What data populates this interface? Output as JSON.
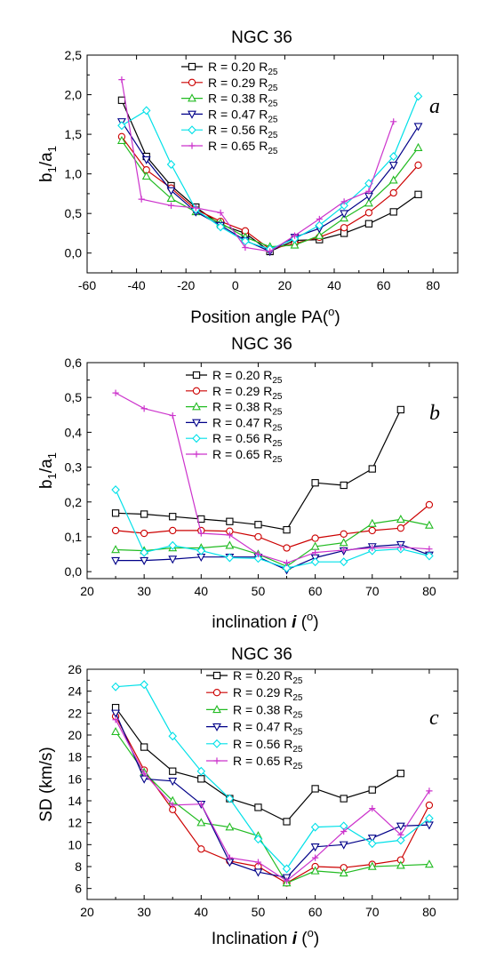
{
  "chart_data": [
    {
      "type": "line",
      "title": "NGC 36",
      "panel_label": "a",
      "xlabel_main": "Position angle PA(",
      "xlabel_sup": "o",
      "xlabel_tail": ")",
      "ylabel_parts": [
        "b",
        "1",
        "/a",
        "1"
      ],
      "xlim": [
        -60,
        90
      ],
      "ylim": [
        -0.25,
        2.5
      ],
      "xticks": [
        -60,
        -40,
        -20,
        0,
        20,
        40,
        60,
        80
      ],
      "yticks": [
        0.0,
        0.5,
        1.0,
        1.5,
        2.0,
        2.5
      ],
      "ytick_labels": [
        "0,0",
        "0,5",
        "1,0",
        "1,5",
        "2,0",
        "2,5"
      ],
      "legend_position": "top-center",
      "series": [
        {
          "name_main": "R = 0.20 R",
          "name_sub": "25",
          "color": "#000000",
          "marker": "square",
          "x": [
            -46,
            -36,
            -26,
            -16,
            -6,
            4,
            14,
            24,
            34,
            44,
            54,
            64,
            74
          ],
          "y": [
            1.93,
            1.22,
            0.85,
            0.58,
            0.36,
            0.25,
            0.02,
            0.16,
            0.17,
            0.25,
            0.37,
            0.52,
            0.74
          ]
        },
        {
          "name_main": "R = 0.29 R",
          "name_sub": "25",
          "color": "#cc0000",
          "marker": "circle",
          "x": [
            -46,
            -36,
            -26,
            -16,
            -6,
            4,
            14,
            24,
            34,
            44,
            54,
            64,
            74
          ],
          "y": [
            1.47,
            1.05,
            0.82,
            0.55,
            0.4,
            0.28,
            0.05,
            0.12,
            0.2,
            0.32,
            0.51,
            0.76,
            1.11
          ]
        },
        {
          "name_main": "R = 0.38 R",
          "name_sub": "25",
          "color": "#22bb22",
          "marker": "triangle-up",
          "x": [
            -46,
            -36,
            -26,
            -16,
            -6,
            4,
            14,
            24,
            34,
            44,
            54,
            64,
            74
          ],
          "y": [
            1.42,
            0.97,
            0.69,
            0.52,
            0.38,
            0.2,
            0.08,
            0.1,
            0.22,
            0.44,
            0.63,
            0.92,
            1.33
          ]
        },
        {
          "name_main": "R = 0.47 R",
          "name_sub": "25",
          "color": "#000088",
          "marker": "triangle-down",
          "x": [
            -46,
            -36,
            -26,
            -16,
            -6,
            4,
            14,
            24,
            34,
            44,
            54,
            64,
            74
          ],
          "y": [
            1.66,
            1.18,
            0.79,
            0.52,
            0.35,
            0.16,
            0.02,
            0.2,
            0.31,
            0.5,
            0.72,
            1.11,
            1.6
          ]
        },
        {
          "name_main": "R = 0.56 R",
          "name_sub": "25",
          "color": "#00e0e8",
          "marker": "diamond",
          "x": [
            -46,
            -36,
            -26,
            -16,
            -6,
            4,
            14,
            24,
            34,
            44,
            54,
            64,
            74
          ],
          "y": [
            1.61,
            1.8,
            1.12,
            0.55,
            0.33,
            0.15,
            0.05,
            0.18,
            0.35,
            0.6,
            0.88,
            1.22,
            1.98
          ]
        },
        {
          "name_main": "R = 0.65 R",
          "name_sub": "25",
          "color": "#cc33cc",
          "marker": "plus",
          "x": [
            -46,
            -38,
            -26,
            -16,
            -6,
            4,
            14,
            24,
            34,
            44,
            54,
            64
          ],
          "y": [
            2.19,
            0.68,
            0.6,
            0.57,
            0.51,
            0.07,
            0.02,
            0.22,
            0.43,
            0.65,
            0.78,
            1.66
          ]
        }
      ]
    },
    {
      "type": "line",
      "title": "NGC 36",
      "panel_label": "b",
      "xlabel_main": "inclination ",
      "xlabel_bold_italic": "i",
      "xlabel_paren_open": " (",
      "xlabel_sup": "o",
      "xlabel_tail": ")",
      "ylabel_parts": [
        "b",
        "1",
        "/a",
        "1"
      ],
      "xlim": [
        20,
        85
      ],
      "ylim": [
        -0.02,
        0.6
      ],
      "xticks": [
        20,
        30,
        40,
        50,
        60,
        70,
        80
      ],
      "yticks": [
        0.0,
        0.1,
        0.2,
        0.3,
        0.4,
        0.5,
        0.6
      ],
      "ytick_labels": [
        "0,0",
        "0,1",
        "0,2",
        "0,3",
        "0,4",
        "0,5",
        "0,6"
      ],
      "legend_position": "top-center",
      "series": [
        {
          "name_main": "R = 0.20 R",
          "name_sub": "25",
          "color": "#000000",
          "marker": "square",
          "x": [
            25,
            30,
            35,
            40,
            45,
            50,
            55,
            60,
            65,
            70,
            75
          ],
          "y": [
            0.168,
            0.165,
            0.158,
            0.151,
            0.144,
            0.135,
            0.12,
            0.255,
            0.248,
            0.295,
            0.465
          ]
        },
        {
          "name_main": "R = 0.29 R",
          "name_sub": "25",
          "color": "#cc0000",
          "marker": "circle",
          "x": [
            25,
            30,
            35,
            40,
            45,
            50,
            55,
            60,
            65,
            70,
            75,
            80
          ],
          "y": [
            0.118,
            0.11,
            0.118,
            0.118,
            0.116,
            0.1,
            0.068,
            0.096,
            0.108,
            0.118,
            0.125,
            0.192
          ]
        },
        {
          "name_main": "R = 0.38 R",
          "name_sub": "25",
          "color": "#22bb22",
          "marker": "triangle-up",
          "x": [
            25,
            30,
            35,
            40,
            45,
            50,
            55,
            60,
            65,
            70,
            75,
            80
          ],
          "y": [
            0.063,
            0.06,
            0.068,
            0.068,
            0.075,
            0.05,
            0.015,
            0.072,
            0.083,
            0.138,
            0.15,
            0.133
          ]
        },
        {
          "name_main": "R = 0.47 R",
          "name_sub": "25",
          "color": "#000088",
          "marker": "triangle-down",
          "x": [
            25,
            30,
            35,
            40,
            45,
            50,
            55,
            60,
            65,
            70,
            75,
            80
          ],
          "y": [
            0.032,
            0.032,
            0.036,
            0.042,
            0.042,
            0.042,
            0.005,
            0.04,
            0.06,
            0.072,
            0.078,
            0.048
          ]
        },
        {
          "name_main": "R = 0.56 R",
          "name_sub": "25",
          "color": "#00e0e8",
          "marker": "diamond",
          "x": [
            25,
            30,
            35,
            40,
            45,
            50,
            55,
            60,
            65,
            70,
            75,
            80
          ],
          "y": [
            0.235,
            0.055,
            0.075,
            0.06,
            0.04,
            0.038,
            0.01,
            0.028,
            0.028,
            0.06,
            0.065,
            0.045
          ]
        },
        {
          "name_main": "R = 0.65 R",
          "name_sub": "25",
          "color": "#cc33cc",
          "marker": "plus",
          "x": [
            25,
            30,
            35,
            40,
            45,
            50,
            55,
            60,
            65,
            70,
            75,
            80
          ],
          "y": [
            0.513,
            0.468,
            0.448,
            0.11,
            0.105,
            0.05,
            0.025,
            0.055,
            0.062,
            0.068,
            0.07,
            0.065
          ]
        }
      ]
    },
    {
      "type": "line",
      "title": "NGC 36",
      "panel_label": "c",
      "xlabel_main": "Inclination ",
      "xlabel_bold_italic": "i",
      "xlabel_paren_open": " (",
      "xlabel_sup": "o",
      "xlabel_tail": ")",
      "ylabel": "SD (km/s)",
      "xlim": [
        20,
        85
      ],
      "ylim": [
        5,
        26
      ],
      "xticks": [
        20,
        30,
        40,
        50,
        60,
        70,
        80
      ],
      "yticks": [
        6,
        8,
        10,
        12,
        14,
        16,
        18,
        20,
        22,
        24,
        26
      ],
      "ytick_labels": [
        "6",
        "8",
        "10",
        "12",
        "14",
        "16",
        "18",
        "20",
        "22",
        "24",
        "26"
      ],
      "legend_position": "top-right",
      "series": [
        {
          "name_main": "R = 0.20 R",
          "name_sub": "25",
          "color": "#000000",
          "marker": "square",
          "x": [
            25,
            30,
            35,
            40,
            45,
            50,
            55,
            60,
            65,
            70,
            75
          ],
          "y": [
            22.5,
            18.9,
            16.7,
            16.0,
            14.2,
            13.4,
            12.1,
            15.1,
            14.2,
            15.0,
            16.5
          ]
        },
        {
          "name_main": "R = 0.29 R",
          "name_sub": "25",
          "color": "#cc0000",
          "marker": "circle",
          "x": [
            25,
            30,
            35,
            40,
            45,
            50,
            55,
            60,
            65,
            70,
            75,
            80
          ],
          "y": [
            21.7,
            16.8,
            13.2,
            9.6,
            8.5,
            8.0,
            6.5,
            8.0,
            7.9,
            8.2,
            8.6,
            13.6
          ]
        },
        {
          "name_main": "R = 0.38 R",
          "name_sub": "25",
          "color": "#22bb22",
          "marker": "triangle-up",
          "x": [
            25,
            30,
            35,
            40,
            45,
            50,
            55,
            60,
            65,
            70,
            75,
            80
          ],
          "y": [
            20.3,
            16.6,
            14.0,
            12.0,
            11.6,
            10.8,
            6.5,
            7.6,
            7.4,
            8.0,
            8.1,
            8.2
          ]
        },
        {
          "name_main": "R = 0.47 R",
          "name_sub": "25",
          "color": "#000088",
          "marker": "triangle-down",
          "x": [
            25,
            30,
            35,
            40,
            45,
            50,
            55,
            60,
            65,
            70,
            75,
            80
          ],
          "y": [
            22.0,
            16.0,
            15.8,
            13.7,
            8.4,
            7.5,
            7.0,
            9.8,
            10.0,
            10.6,
            11.7,
            11.8
          ]
        },
        {
          "name_main": "R = 0.56 R",
          "name_sub": "25",
          "color": "#00e0e8",
          "marker": "diamond",
          "x": [
            25,
            30,
            35,
            40,
            45,
            50,
            55,
            60,
            65,
            70,
            75,
            80
          ],
          "y": [
            24.4,
            24.6,
            19.9,
            16.7,
            14.2,
            10.5,
            7.8,
            11.6,
            11.7,
            10.1,
            10.4,
            12.4
          ]
        },
        {
          "name_main": "R = 0.65 R",
          "name_sub": "25",
          "color": "#cc33cc",
          "marker": "plus",
          "x": [
            25,
            30,
            35,
            40,
            45,
            50,
            55,
            60,
            65,
            70,
            75,
            80
          ],
          "y": [
            21.4,
            16.5,
            13.6,
            13.7,
            8.8,
            8.4,
            6.7,
            8.8,
            11.2,
            13.3,
            10.9,
            14.9
          ]
        }
      ]
    }
  ]
}
